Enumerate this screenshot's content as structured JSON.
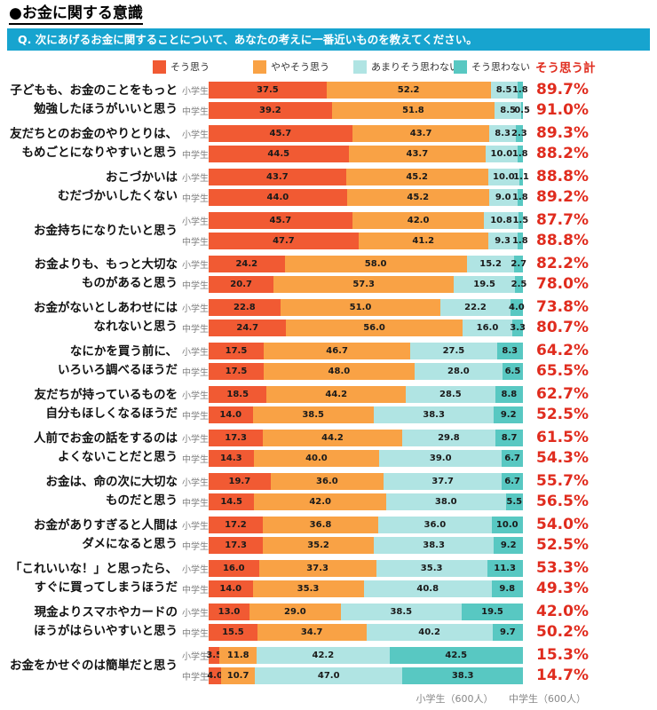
{
  "page": {
    "title": "●お金に関する意識",
    "question_header": "Q. 次にあげるお金に関することについて、あなたの考えに一番近いものを教えてください。",
    "total_header": "そう思う計",
    "footer": [
      "小学生（600人）",
      "中学生（600人）"
    ]
  },
  "colors": {
    "header_bg": "#17A4CF",
    "total_red": "#E02C1E",
    "series": [
      "#F15A33",
      "#F9A245",
      "#B0E4E3",
      "#58C8C2"
    ]
  },
  "legend_labels": [
    "そう思う",
    "ややそう思う",
    "あまりそう思わない",
    "そう思わない"
  ],
  "chart_data": {
    "type": "bar",
    "stacked": true,
    "orientation": "horizontal",
    "xlim": [
      0,
      100
    ],
    "series_names": [
      "そう思う",
      "ややそう思う",
      "あまりそう思わない",
      "そう思わない"
    ],
    "row_labels": [
      "小学生",
      "中学生"
    ],
    "groups": [
      {
        "question_lines": [
          "子どもも、お金のことをもっと",
          "勉強したほうがいいと思う"
        ],
        "rows": [
          {
            "label": "小学生",
            "values": [
              37.5,
              52.2,
              8.5,
              1.8
            ],
            "total": "89.7%"
          },
          {
            "label": "中学生",
            "values": [
              39.2,
              51.8,
              8.5,
              0.5
            ],
            "total": "91.0%"
          }
        ]
      },
      {
        "question_lines": [
          "友だちとのお金のやりとりは、",
          "もめごとになりやすいと思う"
        ],
        "rows": [
          {
            "label": "小学生",
            "values": [
              45.7,
              43.7,
              8.3,
              2.3
            ],
            "total": "89.3%"
          },
          {
            "label": "中学生",
            "values": [
              44.5,
              43.7,
              10.0,
              1.8
            ],
            "total": "88.2%"
          }
        ]
      },
      {
        "question_lines": [
          "おこづかいは",
          "むだづかいしたくない"
        ],
        "rows": [
          {
            "label": "小学生",
            "values": [
              43.7,
              45.2,
              10.0,
              1.1
            ],
            "total": "88.8%"
          },
          {
            "label": "中学生",
            "values": [
              44.0,
              45.2,
              9.0,
              1.8
            ],
            "total": "89.2%"
          }
        ]
      },
      {
        "question_lines": [
          "お金持ちになりたいと思う"
        ],
        "rows": [
          {
            "label": "小学生",
            "values": [
              45.7,
              42.0,
              10.8,
              1.5
            ],
            "total": "87.7%"
          },
          {
            "label": "中学生",
            "values": [
              47.7,
              41.2,
              9.3,
              1.8
            ],
            "total": "88.8%"
          }
        ]
      },
      {
        "question_lines": [
          "お金よりも、もっと大切な",
          "ものがあると思う"
        ],
        "rows": [
          {
            "label": "小学生",
            "values": [
              24.2,
              58.0,
              15.2,
              2.7
            ],
            "total": "82.2%"
          },
          {
            "label": "中学生",
            "values": [
              20.7,
              57.3,
              19.5,
              2.5
            ],
            "total": "78.0%"
          }
        ]
      },
      {
        "question_lines": [
          "お金がないとしあわせには",
          "なれないと思う"
        ],
        "rows": [
          {
            "label": "小学生",
            "values": [
              22.8,
              51.0,
              22.2,
              4.0
            ],
            "total": "73.8%"
          },
          {
            "label": "中学生",
            "values": [
              24.7,
              56.0,
              16.0,
              3.3
            ],
            "total": "80.7%"
          }
        ]
      },
      {
        "question_lines": [
          "なにかを買う前に、",
          "いろいろ調べるほうだ"
        ],
        "rows": [
          {
            "label": "小学生",
            "values": [
              17.5,
              46.7,
              27.5,
              8.3
            ],
            "total": "64.2%"
          },
          {
            "label": "中学生",
            "values": [
              17.5,
              48.0,
              28.0,
              6.5
            ],
            "total": "65.5%"
          }
        ]
      },
      {
        "question_lines": [
          "友だちが持っているものを",
          "自分もほしくなるほうだ"
        ],
        "rows": [
          {
            "label": "小学生",
            "values": [
              18.5,
              44.2,
              28.5,
              8.8
            ],
            "total": "62.7%"
          },
          {
            "label": "中学生",
            "values": [
              14.0,
              38.5,
              38.3,
              9.2
            ],
            "total": "52.5%"
          }
        ]
      },
      {
        "question_lines": [
          "人前でお金の話をするのは",
          "よくないことだと思う"
        ],
        "rows": [
          {
            "label": "小学生",
            "values": [
              17.3,
              44.2,
              29.8,
              8.7
            ],
            "total": "61.5%"
          },
          {
            "label": "中学生",
            "values": [
              14.3,
              40.0,
              39.0,
              6.7
            ],
            "total": "54.3%"
          }
        ]
      },
      {
        "question_lines": [
          "お金は、命の次に大切な",
          "ものだと思う"
        ],
        "rows": [
          {
            "label": "小学生",
            "values": [
              19.7,
              36.0,
              37.7,
              6.7
            ],
            "total": "55.7%"
          },
          {
            "label": "中学生",
            "values": [
              14.5,
              42.0,
              38.0,
              5.5
            ],
            "total": "56.5%"
          }
        ]
      },
      {
        "question_lines": [
          "お金がありすぎると人間は",
          "ダメになると思う"
        ],
        "rows": [
          {
            "label": "小学生",
            "values": [
              17.2,
              36.8,
              36.0,
              10.0
            ],
            "total": "54.0%"
          },
          {
            "label": "中学生",
            "values": [
              17.3,
              35.2,
              38.3,
              9.2
            ],
            "total": "52.5%"
          }
        ]
      },
      {
        "question_lines": [
          "「これいいな！」と思ったら、",
          "すぐに買ってしまうほうだ"
        ],
        "rows": [
          {
            "label": "小学生",
            "values": [
              16.0,
              37.3,
              35.3,
              11.3
            ],
            "total": "53.3%"
          },
          {
            "label": "中学生",
            "values": [
              14.0,
              35.3,
              40.8,
              9.8
            ],
            "total": "49.3%"
          }
        ]
      },
      {
        "question_lines": [
          "現金よりスマホやカードの",
          "ほうがはらいやすいと思う"
        ],
        "rows": [
          {
            "label": "小学生",
            "values": [
              13.0,
              29.0,
              38.5,
              19.5
            ],
            "total": "42.0%"
          },
          {
            "label": "中学生",
            "values": [
              15.5,
              34.7,
              40.2,
              9.7
            ],
            "total": "50.2%"
          }
        ]
      },
      {
        "question_lines": [
          "お金をかせぐのは簡単だと思う"
        ],
        "rows": [
          {
            "label": "小学生",
            "values": [
              3.5,
              11.8,
              42.2,
              42.5
            ],
            "total": "15.3%"
          },
          {
            "label": "中学生",
            "values": [
              4.0,
              10.7,
              47.0,
              38.3
            ],
            "total": "14.7%"
          }
        ]
      }
    ]
  }
}
